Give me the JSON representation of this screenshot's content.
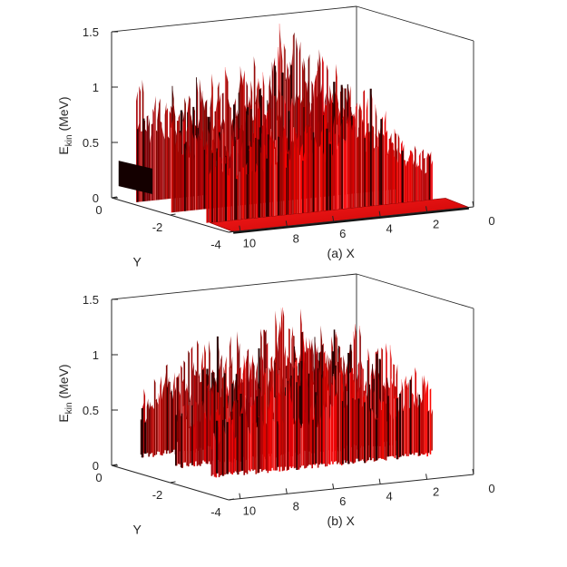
{
  "chart_data": [
    {
      "type": "surface",
      "panel_label": "(a)",
      "xlabel": "X",
      "ylabel": "Y",
      "zlabel_main": "E",
      "zlabel_sub": "kin",
      "zlabel_unit": "(MeV)",
      "xlim": [
        0,
        10.5
      ],
      "ylim": [
        -4,
        0
      ],
      "zlim": [
        0,
        1.5
      ],
      "xticks": [
        "10",
        "8",
        "6",
        "4",
        "2",
        "0"
      ],
      "xtick_values": [
        10,
        8,
        6,
        4,
        2,
        0
      ],
      "yticks": [
        "0",
        "-2",
        "-4"
      ],
      "ytick_values": [
        0,
        -2,
        -4
      ],
      "zticks": [
        "0",
        "0.5",
        "1",
        "1.5"
      ],
      "ztick_values": [
        0,
        0.5,
        1,
        1.5
      ],
      "surface_color": "#e8000b",
      "floor_plane": true,
      "ridge_profile": {
        "x": [
          10.2,
          9.5,
          9.0,
          8.5,
          8.0,
          7.5,
          7.0,
          6.5,
          6.0,
          5.5,
          5.0,
          4.5,
          4.0,
          3.5,
          3.0,
          2.5,
          2.0,
          1.5,
          1.0,
          0.5
        ],
        "emax": [
          1.15,
          0.95,
          0.9,
          0.9,
          0.92,
          0.95,
          1.0,
          1.05,
          1.08,
          1.1,
          1.12,
          1.15,
          1.35,
          1.4,
          1.25,
          1.1,
          0.75,
          0.7,
          0.6,
          0.55
        ]
      }
    },
    {
      "type": "surface",
      "panel_label": "(b)",
      "xlabel": "X",
      "ylabel": "Y",
      "zlabel_main": "E",
      "zlabel_sub": "kin",
      "zlabel_unit": "(MeV)",
      "xlim": [
        0,
        10.5
      ],
      "ylim": [
        -4,
        0
      ],
      "zlim": [
        0,
        1.5
      ],
      "xticks": [
        "10",
        "8",
        "6",
        "4",
        "2",
        "0"
      ],
      "xtick_values": [
        10,
        8,
        6,
        4,
        2,
        0
      ],
      "yticks": [
        "0",
        "-2",
        "-4"
      ],
      "ytick_values": [
        0,
        -2,
        -4
      ],
      "zticks": [
        "0",
        "0.5",
        "1",
        "1.5"
      ],
      "ztick_values": [
        0,
        0.5,
        1,
        1.5
      ],
      "surface_color": "#e8000b",
      "floor_plane": false,
      "ridge_profile": {
        "x": [
          10.0,
          9.5,
          9.0,
          8.5,
          8.0,
          7.5,
          7.0,
          6.5,
          6.0,
          5.5,
          5.0,
          4.5,
          4.0,
          3.5,
          3.0,
          2.5,
          2.0,
          1.5,
          1.0,
          0.5
        ],
        "emax": [
          0.75,
          0.8,
          0.95,
          1.0,
          1.05,
          1.1,
          1.15,
          1.15,
          1.1,
          1.15,
          1.2,
          1.25,
          1.35,
          1.3,
          1.1,
          1.0,
          0.95,
          1.2,
          1.1,
          1.0
        ]
      }
    }
  ]
}
